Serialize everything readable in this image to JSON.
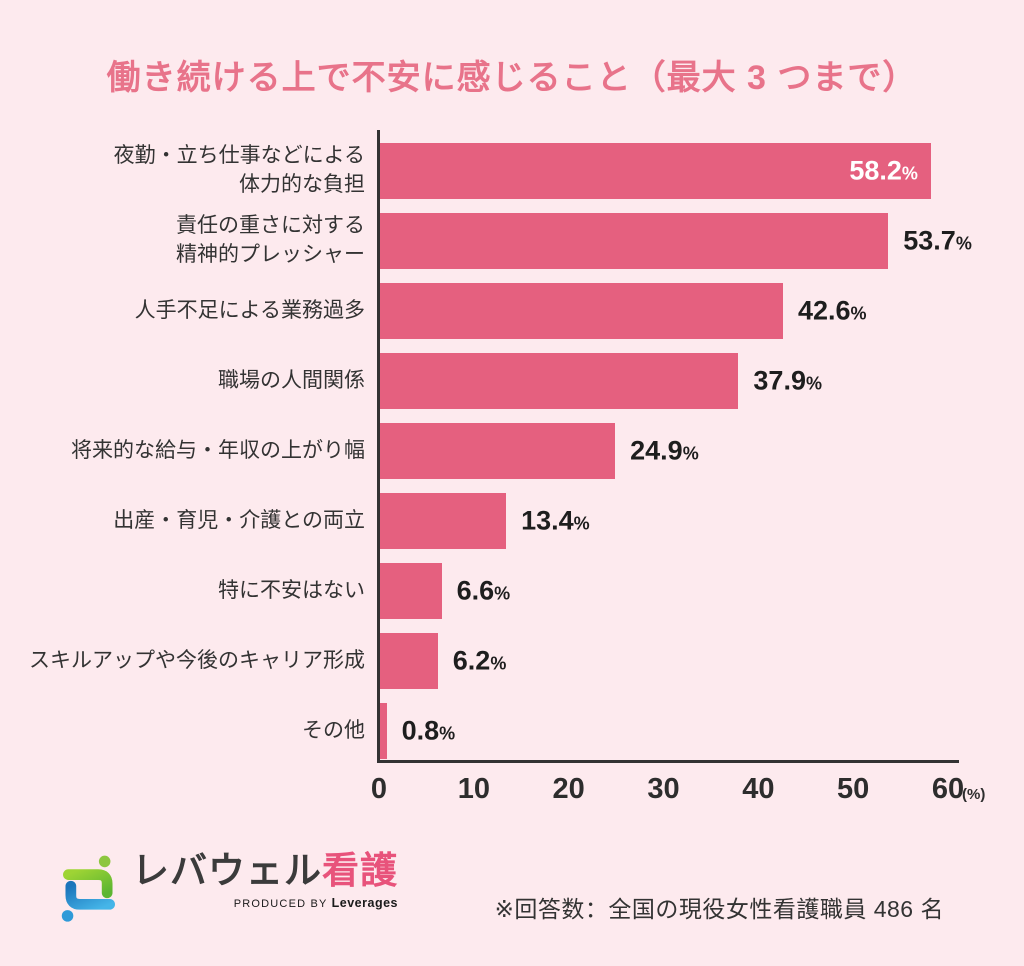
{
  "title": "働き続ける上で不安に感じること（最大 3 つまで）",
  "chart_data": {
    "type": "bar",
    "orientation": "horizontal",
    "title": "働き続ける上で不安に感じること（最大 3 つまで）",
    "categories": [
      "夜勤・立ち仕事などによる\n体力的な負担",
      "責任の重さに対する\n精神的プレッシャー",
      "人手不足による業務過多",
      "職場の人間関係",
      "将来的な給与・年収の上がり幅",
      "出産・育児・介護との両立",
      "特に不安はない",
      "スキルアップや今後のキャリア形成",
      "その他"
    ],
    "values": [
      58.2,
      53.7,
      42.6,
      37.9,
      24.9,
      13.4,
      6.6,
      6.2,
      0.8
    ],
    "unit": "%",
    "x_ticks": [
      0,
      10,
      20,
      30,
      40,
      50,
      60
    ],
    "x_unit_label": "(%)",
    "xlim": [
      0,
      60
    ],
    "grid": false,
    "legend": false,
    "bar_color": "#e5607f",
    "value_label_color": "#1e1e1e",
    "value_label_inside_color": "#ffffff"
  },
  "colors": {
    "background": "#fdeaee",
    "title": "#e8738a",
    "bar": "#e5607f",
    "axis": "#333333",
    "text_dark": "#333333",
    "logo_accent": "#e8537b",
    "logo_green": "#8dc63f",
    "logo_blue": "#2f9ad8"
  },
  "footer": {
    "logo_text_main": "レバウェル",
    "logo_text_accent": "看護",
    "logo_subtext_prefix": "PRODUCED BY ",
    "logo_subtext_brand": "Leverages",
    "note": "※回答数：全国の現役女性看護職員 486 名"
  }
}
